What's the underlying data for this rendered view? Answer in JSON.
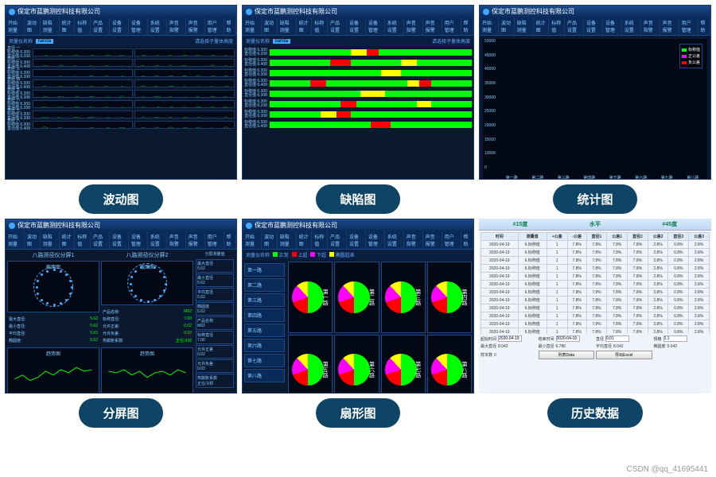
{
  "company": "保定市蓝鹏测控科技有限公司",
  "menus": [
    "开始测量",
    "波动图",
    "缺陷测量",
    "统计图",
    "标称值",
    "产品设置",
    "设备设置",
    "设备管理",
    "系统设置",
    "声音指警",
    "声音报警",
    "用户管理",
    "帮助"
  ],
  "subbar": {
    "label": "测量仪名称",
    "device": "lianda",
    "prompt": "请选择子量体高度"
  },
  "labels": {
    "wave": "波动图",
    "defect": "缺陷图",
    "stat": "统计图",
    "split": "分屏图",
    "pie": "扇形图",
    "hist": "历史数据"
  },
  "wave_channels": [
    {
      "name": "直径 一",
      "v1": "标称值 6.300",
      "v2": "直径值 6.208"
    },
    {
      "name": "直经 二",
      "v1": "标称值 6.300",
      "v2": "直径值 6.408"
    },
    {
      "name": "直经 三",
      "v1": "标称值 6.300",
      "v2": "直径值 6.308"
    },
    {
      "name": "直经 四",
      "v1": "标称值 6.300",
      "v2": "直径值 6.408"
    },
    {
      "name": "直经 五",
      "v1": "标称值 6.300",
      "v2": "直径值 6.308"
    },
    {
      "name": "直经 六",
      "v1": "标称值 6.300",
      "v2": "直径值 6.208"
    },
    {
      "name": "直经 七",
      "v1": "标称值 6.300",
      "v2": "直径值 6.308"
    },
    {
      "name": "直经 八",
      "v1": "标称值 6.300",
      "v2": "直径值 6.408"
    }
  ],
  "defect_rows": [
    [
      [
        "#0f0",
        40
      ],
      [
        "#ff0",
        8
      ],
      [
        "#f00",
        6
      ],
      [
        "#0f0",
        46
      ]
    ],
    [
      [
        "#0f0",
        30
      ],
      [
        "#f00",
        10
      ],
      [
        "#0f0",
        25
      ],
      [
        "#ff0",
        8
      ],
      [
        "#0f0",
        27
      ]
    ],
    [
      [
        "#0f0",
        55
      ],
      [
        "#ff0",
        10
      ],
      [
        "#0f0",
        35
      ]
    ],
    [
      [
        "#0f0",
        20
      ],
      [
        "#f00",
        8
      ],
      [
        "#0f0",
        40
      ],
      [
        "#ff0",
        6
      ],
      [
        "#f00",
        6
      ],
      [
        "#0f0",
        20
      ]
    ],
    [
      [
        "#0f0",
        45
      ],
      [
        "#ff0",
        12
      ],
      [
        "#0f0",
        43
      ]
    ],
    [
      [
        "#0f0",
        35
      ],
      [
        "#f00",
        8
      ],
      [
        "#0f0",
        30
      ],
      [
        "#ff0",
        7
      ],
      [
        "#0f0",
        20
      ]
    ],
    [
      [
        "#0f0",
        25
      ],
      [
        "#ff0",
        8
      ],
      [
        "#f00",
        7
      ],
      [
        "#0f0",
        60
      ]
    ],
    [
      [
        "#0f0",
        50
      ],
      [
        "#f00",
        10
      ],
      [
        "#0f0",
        40
      ]
    ]
  ],
  "stat": {
    "ylabels": [
      "50000",
      "45000",
      "40000",
      "35000",
      "30000",
      "25000",
      "20000",
      "15000",
      "10000",
      "0"
    ],
    "xlabels": [
      "第一路",
      "第二路",
      "第三路",
      "第四路",
      "第五路",
      "第六路",
      "第七路",
      "第八路"
    ],
    "legend": [
      [
        "标称值",
        "#0f0"
      ],
      [
        "正公差",
        "#f0f"
      ],
      [
        "负公差",
        "#f00"
      ]
    ],
    "bars": [
      [
        [
          90,
          "#0f0"
        ],
        [
          60,
          "#f0f"
        ],
        [
          45,
          "#f00"
        ]
      ],
      [
        [
          88,
          "#0f0"
        ],
        [
          55,
          "#f0f"
        ],
        [
          40,
          "#f00"
        ]
      ],
      [
        [
          70,
          "#0f0"
        ],
        [
          48,
          "#f0f"
        ],
        [
          42,
          "#f00"
        ]
      ],
      [
        [
          92,
          "#0f0"
        ],
        [
          62,
          "#f0f"
        ],
        [
          44,
          "#f00"
        ]
      ],
      [
        [
          60,
          "#0f0"
        ],
        [
          38,
          "#f0f"
        ],
        [
          35,
          "#f00"
        ]
      ],
      [
        [
          85,
          "#0f0"
        ],
        [
          50,
          "#f0f"
        ],
        [
          46,
          "#f00"
        ]
      ],
      [
        [
          75,
          "#0f0"
        ],
        [
          52,
          "#f0f"
        ],
        [
          40,
          "#f00"
        ]
      ],
      [
        [
          90,
          "#0f0"
        ],
        [
          58,
          "#f0f"
        ],
        [
          48,
          "#f00"
        ]
      ]
    ]
  },
  "split": {
    "t1": "八路测径仪分屏1",
    "t2": "八路测径仪分屏2",
    "side": "分屏测量值",
    "sec": "截面图",
    "trend": "趋势图",
    "stats1": [
      [
        "最大直径",
        "5.62"
      ],
      [
        "最小直径",
        "5.62"
      ],
      [
        "平均直径",
        "5.62"
      ],
      [
        "椭圆度",
        "5.62"
      ]
    ],
    "stats2": [
      [
        "产品名称",
        "M92"
      ],
      [
        "标称直径",
        "7.00"
      ],
      [
        "允许正差",
        "0.02"
      ],
      [
        "允许负差",
        "0.02"
      ],
      [
        "热膨胀系数",
        "正在冷却"
      ]
    ]
  },
  "pie": {
    "side": [
      "第一路",
      "第二路",
      "第三路",
      "第四路",
      "第五路",
      "第六路",
      "第七路",
      "第八路"
    ],
    "header": [
      "测量仪名称",
      "正常",
      "上超",
      "下超",
      "椭圆超差"
    ],
    "cells": [
      "第一路",
      "第二路",
      "第三路",
      "第四路",
      "第五路",
      "第六路",
      "第七路",
      "第八路"
    ],
    "colors": {
      "a": "#0f0",
      "b": "#f00",
      "c": "#f0f",
      "d": "#ff0"
    }
  },
  "hist": {
    "top": [
      "≠15度",
      "水平",
      "≠45度"
    ],
    "cols": [
      "时间",
      "测量值",
      "+公差",
      "-公差",
      "直径1",
      "公差1",
      "直径2",
      "公差2",
      "直径3",
      "公差3"
    ],
    "rows": [
      [
        "2020-04-19",
        "6.标称值",
        "1",
        "7.8%",
        "7.8%",
        "7.8%",
        "7.8%",
        "2.8%",
        "0.8%",
        "2.8%"
      ],
      [
        "2020-04-19",
        "6.标称值",
        "1",
        "7.8%",
        "7.8%",
        "7.8%",
        "7.8%",
        "2.8%",
        "0.8%",
        "2.8%"
      ],
      [
        "2020-04-19",
        "6.标称值",
        "1",
        "7.8%",
        "7.8%",
        "7.8%",
        "7.8%",
        "2.8%",
        "0.8%",
        "2.8%"
      ],
      [
        "2020-04-19",
        "6.标称值",
        "1",
        "7.8%",
        "7.8%",
        "7.8%",
        "7.8%",
        "2.8%",
        "0.8%",
        "2.8%"
      ],
      [
        "2020-04-19",
        "6.标称值",
        "1",
        "7.8%",
        "7.8%",
        "7.8%",
        "7.8%",
        "2.8%",
        "0.8%",
        "2.8%"
      ],
      [
        "2020-04-19",
        "6.标称值",
        "1",
        "7.8%",
        "7.8%",
        "7.8%",
        "7.8%",
        "2.8%",
        "0.8%",
        "2.8%"
      ],
      [
        "2020-04-19",
        "6.标称值",
        "1",
        "7.8%",
        "7.8%",
        "7.8%",
        "7.8%",
        "2.8%",
        "0.8%",
        "2.8%"
      ],
      [
        "2020-04-19",
        "6.标称值",
        "1",
        "7.8%",
        "7.8%",
        "7.8%",
        "7.8%",
        "2.8%",
        "0.8%",
        "2.8%"
      ],
      [
        "2020-04-19",
        "6.标称值",
        "1",
        "7.8%",
        "7.8%",
        "7.8%",
        "7.8%",
        "2.8%",
        "0.8%",
        "2.8%"
      ],
      [
        "2020-04-19",
        "6.标称值",
        "1",
        "7.8%",
        "7.8%",
        "7.8%",
        "7.8%",
        "2.8%",
        "0.8%",
        "2.8%"
      ],
      [
        "2020-04-19",
        "6.标称值",
        "1",
        "7.8%",
        "7.8%",
        "7.8%",
        "7.8%",
        "2.8%",
        "0.8%",
        "2.8%"
      ],
      [
        "2020-04-19",
        "6.标称值",
        "1",
        "7.8%",
        "7.8%",
        "7.8%",
        "7.8%",
        "2.8%",
        "0.8%",
        "2.8%"
      ]
    ],
    "fields": [
      [
        "起始时间",
        "2020-04-19"
      ],
      [
        "结束时间",
        "2020-04-19"
      ],
      [
        "直径",
        "0.01"
      ],
      [
        "规格",
        "0.1"
      ]
    ],
    "summary": [
      [
        "最大直径",
        "8.042"
      ],
      [
        "最小直径",
        "6.786"
      ],
      [
        "平均直径",
        "8.042"
      ],
      [
        "椭圆度",
        "0.042"
      ],
      [
        "样本数",
        "0"
      ]
    ],
    "btn": "列表Data",
    "btn2": "导出Excel"
  },
  "watermark": "CSDN @qq_41695441"
}
